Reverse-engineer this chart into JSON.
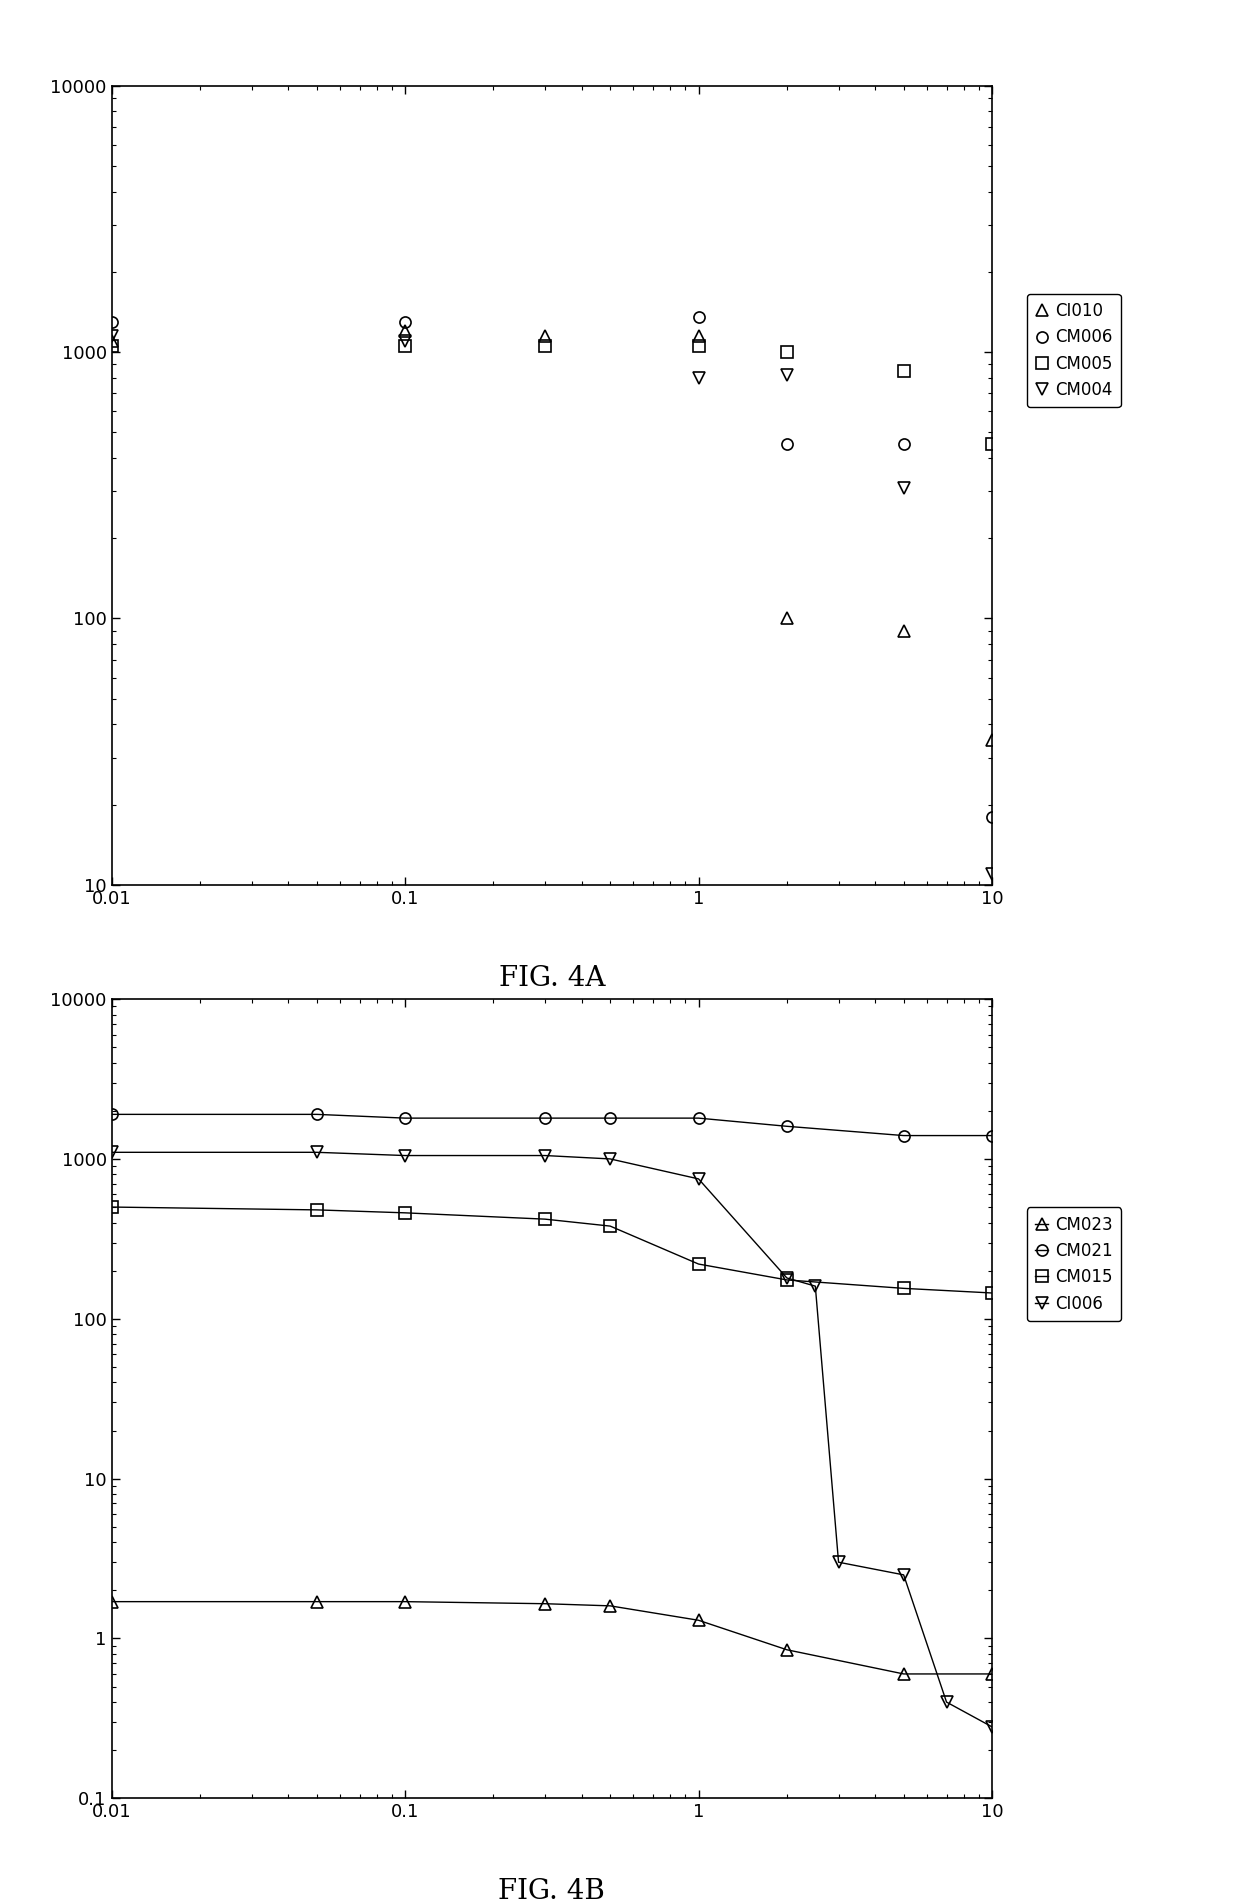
{
  "fig4a": {
    "CI010": {
      "x": [
        0.01,
        0.1,
        0.3,
        1.0,
        2.0,
        5.0,
        10.0
      ],
      "y": [
        1100,
        1200,
        1150,
        1150,
        100,
        90,
        35
      ]
    },
    "CM006": {
      "x": [
        0.01,
        0.1,
        1.0,
        2.0,
        5.0,
        10.0
      ],
      "y": [
        1300,
        1300,
        1350,
        450,
        450,
        18
      ]
    },
    "CM005": {
      "x": [
        0.01,
        0.1,
        0.3,
        1.0,
        2.0,
        5.0,
        10.0
      ],
      "y": [
        1050,
        1050,
        1050,
        1050,
        1000,
        850,
        450
      ]
    },
    "CM004": {
      "x": [
        0.01,
        0.1,
        1.0,
        2.0,
        5.0,
        10.0
      ],
      "y": [
        1150,
        1100,
        800,
        820,
        310,
        11
      ]
    }
  },
  "fig4b": {
    "CM023": {
      "x": [
        0.01,
        0.05,
        0.1,
        0.3,
        0.5,
        1.0,
        2.0,
        5.0,
        10.0
      ],
      "y": [
        1.7,
        1.7,
        1.7,
        1.65,
        1.6,
        1.3,
        0.85,
        0.6,
        0.6
      ]
    },
    "CM021": {
      "x": [
        0.01,
        0.05,
        0.1,
        0.3,
        0.5,
        1.0,
        2.0,
        5.0,
        10.0
      ],
      "y": [
        1900,
        1900,
        1800,
        1800,
        1800,
        1800,
        1600,
        1400,
        1400
      ]
    },
    "CM015": {
      "x": [
        0.01,
        0.05,
        0.1,
        0.3,
        0.5,
        1.0,
        2.0,
        5.0,
        10.0
      ],
      "y": [
        500,
        480,
        460,
        420,
        380,
        220,
        175,
        155,
        145
      ]
    },
    "CI006": {
      "x": [
        0.01,
        0.05,
        0.1,
        0.3,
        0.5,
        1.0,
        2.0,
        2.5,
        3.0,
        5.0,
        7.0,
        10.0
      ],
      "y": [
        1100,
        1100,
        1050,
        1050,
        1000,
        750,
        180,
        160,
        3.0,
        2.5,
        0.4,
        0.28
      ]
    }
  },
  "xlim": [
    0.01,
    10
  ],
  "fig4a_ylim": [
    10,
    10000
  ],
  "fig4b_ylim": [
    0.1,
    10000
  ],
  "background_color": "#ffffff",
  "marker_color": "#000000",
  "marker_size": 8,
  "label_4a": "FIG. 4A",
  "label_4b": "FIG. 4B"
}
